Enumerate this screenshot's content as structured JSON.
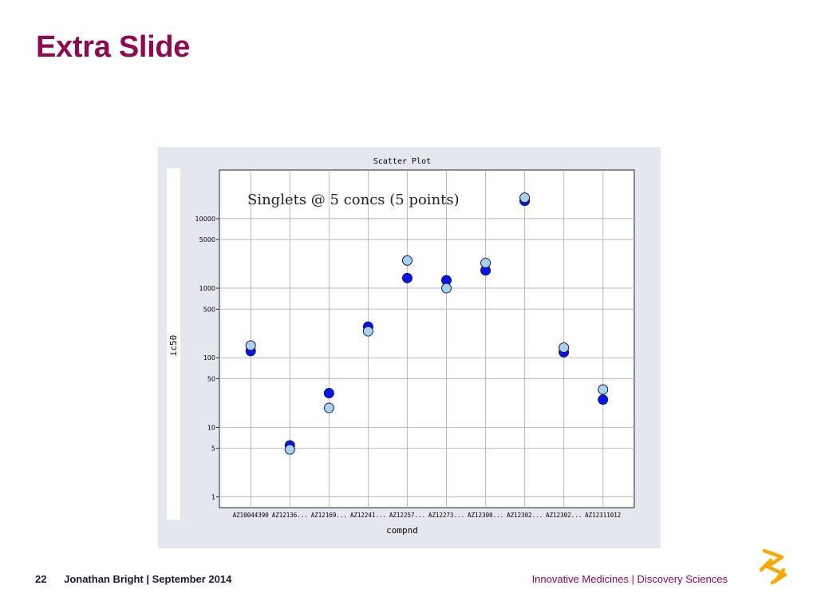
{
  "slide": {
    "title": "Extra Slide"
  },
  "footer": {
    "page_number": "22",
    "author_date": "Jonathan Bright | September 2014",
    "department": "Innovative Medicines | Discovery Sciences"
  },
  "colors": {
    "title": "#8b0a50",
    "series_dark": "#0a14f0",
    "series_light": "#a8d0f4",
    "panel_bg": "#e4e8ee",
    "logo": "#f2a900"
  },
  "icons": {
    "logo": "astrazeneca-logo-icon"
  },
  "chart_data": {
    "type": "scatter",
    "title": "Scatter Plot",
    "annotation": "Singlets @ 5 concs (5 points)",
    "xlabel": "compnd",
    "ylabel": "ic50",
    "yscale": "log",
    "ylim": [
      0.7,
      50000
    ],
    "grid": true,
    "categories": [
      "AZ10044390",
      "AZ12136...",
      "AZ12169...",
      "AZ12241...",
      "AZ12257...",
      "AZ12273...",
      "AZ12300...",
      "AZ12302...",
      "AZ12302...",
      "AZ12311012"
    ],
    "yticks": [
      {
        "value": 10000,
        "label": "10000"
      },
      {
        "value": 5000,
        "label": "5000"
      },
      {
        "value": 1000,
        "label": "1000"
      },
      {
        "value": 500,
        "label": "500"
      },
      {
        "value": 100,
        "label": "100"
      },
      {
        "value": 50,
        "label": "50"
      },
      {
        "value": 10,
        "label": "10"
      },
      {
        "value": 5,
        "label": "5"
      },
      {
        "value": 1,
        "label": "1"
      }
    ],
    "series": [
      {
        "color": "#0a14f0",
        "values": [
          125,
          5.5,
          31,
          280,
          1400,
          1300,
          1800,
          18000,
          120,
          25
        ]
      },
      {
        "color": "#a8d0f4",
        "values": [
          150,
          4.8,
          19,
          240,
          2500,
          1000,
          2300,
          20000,
          140,
          35
        ]
      }
    ]
  }
}
